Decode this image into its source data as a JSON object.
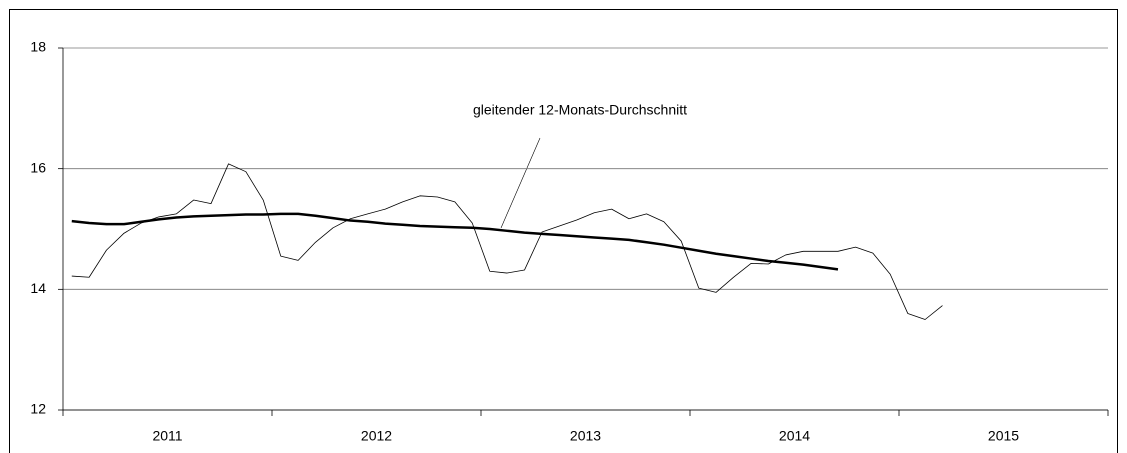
{
  "chart_data": {
    "type": "line",
    "annotation": "gleitender 12-Monats-Durchschnitt",
    "x": [
      2011.042,
      2011.125,
      2011.208,
      2011.292,
      2011.375,
      2011.458,
      2011.542,
      2011.625,
      2011.708,
      2011.792,
      2011.875,
      2011.958,
      2012.042,
      2012.125,
      2012.208,
      2012.292,
      2012.375,
      2012.458,
      2012.542,
      2012.625,
      2012.708,
      2012.792,
      2012.875,
      2012.958,
      2013.042,
      2013.125,
      2013.208,
      2013.292,
      2013.375,
      2013.458,
      2013.542,
      2013.625,
      2013.708,
      2013.792,
      2013.875,
      2013.958,
      2014.042,
      2014.125,
      2014.208,
      2014.292,
      2014.375,
      2014.458,
      2014.542,
      2014.625,
      2014.708,
      2014.792,
      2014.875,
      2014.958,
      2015.042,
      2015.125,
      2015.208
    ],
    "series": [
      {
        "color": "#000000",
        "width": 0.8,
        "values": [
          14.22,
          14.2,
          14.65,
          14.93,
          15.1,
          15.2,
          15.25,
          15.48,
          15.42,
          16.08,
          15.95,
          15.48,
          14.55,
          14.48,
          14.78,
          15.02,
          15.17,
          15.25,
          15.33,
          15.45,
          15.55,
          15.53,
          15.45,
          15.1,
          14.3,
          14.27,
          14.32,
          14.95,
          15.05,
          15.15,
          15.27,
          15.33,
          15.17,
          15.25,
          15.12,
          14.8,
          14.02,
          13.95,
          14.2,
          14.43,
          14.42,
          14.57,
          14.63,
          14.63,
          14.63,
          14.7,
          14.6,
          14.25,
          13.6,
          13.5,
          13.73
        ]
      },
      {
        "color": "#000000",
        "width": 2.5,
        "values": [
          15.13,
          15.1,
          15.08,
          15.08,
          15.12,
          15.16,
          15.19,
          15.21,
          15.22,
          15.23,
          15.24,
          15.24,
          15.25,
          15.25,
          15.22,
          15.18,
          15.14,
          15.12,
          15.09,
          15.07,
          15.05,
          15.04,
          15.03,
          15.02,
          15.0,
          14.97,
          14.94,
          14.92,
          14.9,
          14.88,
          14.86,
          14.84,
          14.82,
          14.78,
          14.74,
          14.69,
          14.64,
          14.59,
          14.55,
          14.51,
          14.47,
          14.44,
          14.41,
          14.37,
          14.33,
          null,
          null,
          null,
          null,
          null,
          null
        ]
      }
    ],
    "xlim": [
      2011,
      2016
    ],
    "xticks": [
      {
        "value": 2011.5,
        "label": "2011"
      },
      {
        "value": 2012.5,
        "label": "2012"
      },
      {
        "value": 2013.5,
        "label": "2013"
      },
      {
        "value": 2014.5,
        "label": "2014"
      },
      {
        "value": 2015.5,
        "label": "2015"
      }
    ],
    "minor_xticks": [
      2011,
      2012,
      2013,
      2014,
      2015,
      2016
    ],
    "ylim": [
      12,
      18
    ],
    "yticks": [
      12,
      14,
      16,
      18
    ],
    "grid": true
  }
}
